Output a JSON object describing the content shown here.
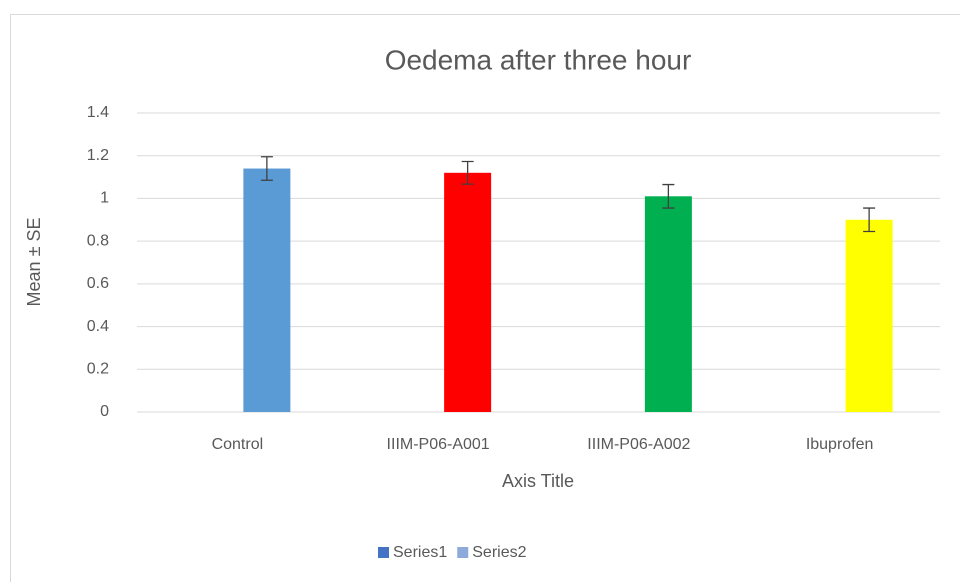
{
  "chart_data": {
    "type": "bar",
    "title": "Oedema after three hour",
    "x_label": "Axis Title",
    "y_label": "Mean ± SE",
    "categories": [
      "Control",
      "IIIM-P06-A001",
      "IIIM-P06-A002",
      "Ibuprofen"
    ],
    "series": [
      {
        "name": "Series1",
        "color": "#4472c4",
        "values": [
          null,
          null,
          null,
          null
        ]
      },
      {
        "name": "Series2",
        "color": "#8eaadb",
        "values": [
          1.14,
          1.12,
          1.01,
          0.9
        ],
        "errors": [
          0.055,
          0.053,
          0.055,
          0.055
        ],
        "point_colors": [
          "#5b9bd5",
          "#ff0000",
          "#00b050",
          "#ffff00"
        ]
      }
    ],
    "ylim": [
      0,
      1.4
    ],
    "yticks": [
      0,
      0.2,
      0.4,
      0.6,
      0.8,
      1,
      1.2,
      1.4
    ],
    "grid": true,
    "legend": "bottom"
  }
}
